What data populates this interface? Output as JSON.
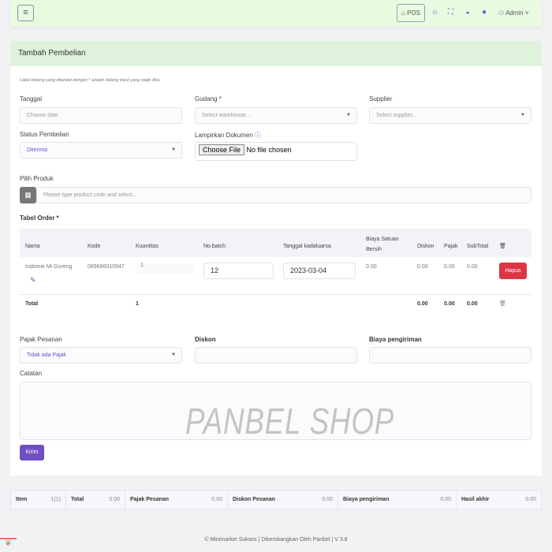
{
  "header": {
    "pos_label": "POS",
    "user": "Admin"
  },
  "page_title": "Tambah Pembelian",
  "form_note": "Label bidang yang ditandai dengan * adalah bidang input yang wajib diisi.",
  "fields": {
    "tanggal": {
      "label": "Tanggal",
      "placeholder": "Choose date"
    },
    "gudang": {
      "label": "Gudang *",
      "placeholder": "Select warehouse..."
    },
    "supplier": {
      "label": "Supplier",
      "placeholder": "Select supplier..."
    },
    "status": {
      "label": "Status Pembelian",
      "value": "Diterima"
    },
    "dokumen": {
      "label": "Lampirkan Dokumen",
      "button": "Choose File",
      "status": "No file chosen"
    },
    "produk": {
      "label": "Pilih Produk",
      "placeholder": "Please type product code and select..."
    }
  },
  "table": {
    "title": "Tabel Order *",
    "headers": [
      "Nama",
      "Kode",
      "Kuantitas",
      "No batch",
      "Tanggal kadaluarsa",
      "Biaya Satuan Bersih",
      "Diskon",
      "Pajak",
      "SubTotal"
    ],
    "rows": [
      {
        "nama": "Indomie Mi Goreng",
        "kode": "089686010947",
        "qty": "1",
        "batch": "12",
        "exp": "2023-03-04",
        "biaya": "0.00",
        "diskon": "0.00",
        "pajak": "0.00",
        "subtotal": "0.00",
        "delete": "Hapus"
      }
    ],
    "total": {
      "label": "Total",
      "qty": "1",
      "diskon": "0.00",
      "pajak": "0.00",
      "subtotal": "0.00"
    }
  },
  "bottom": {
    "pajak": {
      "label": "Pajak Pesanan",
      "value": "Tidak ada Pajak"
    },
    "diskon": {
      "label": "Diskon"
    },
    "biaya": {
      "label": "Biaya pengiriman"
    },
    "catatan": {
      "label": "Catatan"
    },
    "submit": "Kirim"
  },
  "watermark": "PANBEL SHOP",
  "summary": [
    {
      "k": "Item",
      "v": "1(1)"
    },
    {
      "k": "Total",
      "v": "0.00"
    },
    {
      "k": "Pajak Pesanan",
      "v": "0.00"
    },
    {
      "k": "Diskon Pesanan",
      "v": "0.00"
    },
    {
      "k": "Biaya pengiriman",
      "v": "0.00"
    },
    {
      "k": "Hasil akhir",
      "v": "0.00"
    }
  ],
  "footer": "© Minimarket Sukses | Dikembangkan Oleh Panbel | V 3.8",
  "colors": {
    "accent": "#6f4fc1",
    "danger": "#dc3545",
    "header_bg": "#e8fbe0"
  }
}
